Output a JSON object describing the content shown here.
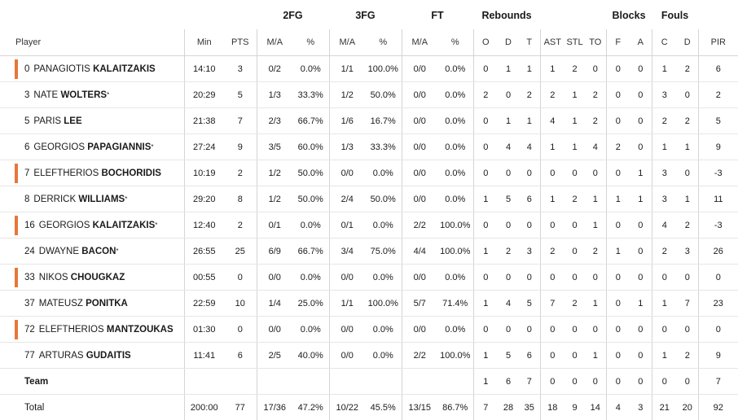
{
  "headers": {
    "groups": {
      "fg2": "2FG",
      "fg3": "3FG",
      "ft": "FT",
      "rebounds": "Rebounds",
      "blocks": "Blocks",
      "fouls": "Fouls"
    },
    "columns": {
      "player": "Player",
      "min": "Min",
      "pts": "PTS",
      "fg2_ma": "M/A",
      "fg2_pct": "%",
      "fg3_ma": "M/A",
      "fg3_pct": "%",
      "ft_ma": "M/A",
      "ft_pct": "%",
      "reb_o": "O",
      "reb_d": "D",
      "reb_t": "T",
      "ast": "AST",
      "stl": "STL",
      "to": "TO",
      "blk_f": "F",
      "blk_a": "A",
      "foul_c": "C",
      "foul_d": "D",
      "pir": "PIR"
    }
  },
  "marker_color": "#e8763a",
  "players": [
    {
      "number": "0",
      "first": "PANAGIOTIS",
      "last": "KALAITZAKIS",
      "star": "",
      "bench": true,
      "min": "14:10",
      "pts": "3",
      "fg2_ma": "0/2",
      "fg2_pct": "0.0%",
      "fg3_ma": "1/1",
      "fg3_pct": "100.0%",
      "ft_ma": "0/0",
      "ft_pct": "0.0%",
      "reb_o": "0",
      "reb_d": "1",
      "reb_t": "1",
      "ast": "1",
      "stl": "2",
      "to": "0",
      "blk_f": "0",
      "blk_a": "0",
      "foul_c": "1",
      "foul_d": "2",
      "pir": "6"
    },
    {
      "number": "3",
      "first": "NATE",
      "last": "WOLTERS",
      "star": "*",
      "bench": false,
      "min": "20:29",
      "pts": "5",
      "fg2_ma": "1/3",
      "fg2_pct": "33.3%",
      "fg3_ma": "1/2",
      "fg3_pct": "50.0%",
      "ft_ma": "0/0",
      "ft_pct": "0.0%",
      "reb_o": "2",
      "reb_d": "0",
      "reb_t": "2",
      "ast": "2",
      "stl": "1",
      "to": "2",
      "blk_f": "0",
      "blk_a": "0",
      "foul_c": "3",
      "foul_d": "0",
      "pir": "2"
    },
    {
      "number": "5",
      "first": "PARIS",
      "last": "LEE",
      "star": "",
      "bench": false,
      "min": "21:38",
      "pts": "7",
      "fg2_ma": "2/3",
      "fg2_pct": "66.7%",
      "fg3_ma": "1/6",
      "fg3_pct": "16.7%",
      "ft_ma": "0/0",
      "ft_pct": "0.0%",
      "reb_o": "0",
      "reb_d": "1",
      "reb_t": "1",
      "ast": "4",
      "stl": "1",
      "to": "2",
      "blk_f": "0",
      "blk_a": "0",
      "foul_c": "2",
      "foul_d": "2",
      "pir": "5"
    },
    {
      "number": "6",
      "first": "GEORGIOS",
      "last": "PAPAGIANNIS",
      "star": "*",
      "bench": false,
      "min": "27:24",
      "pts": "9",
      "fg2_ma": "3/5",
      "fg2_pct": "60.0%",
      "fg3_ma": "1/3",
      "fg3_pct": "33.3%",
      "ft_ma": "0/0",
      "ft_pct": "0.0%",
      "reb_o": "0",
      "reb_d": "4",
      "reb_t": "4",
      "ast": "1",
      "stl": "1",
      "to": "4",
      "blk_f": "2",
      "blk_a": "0",
      "foul_c": "1",
      "foul_d": "1",
      "pir": "9"
    },
    {
      "number": "7",
      "first": "ELEFTHERIOS",
      "last": "BOCHORIDIS",
      "star": "",
      "bench": true,
      "min": "10:19",
      "pts": "2",
      "fg2_ma": "1/2",
      "fg2_pct": "50.0%",
      "fg3_ma": "0/0",
      "fg3_pct": "0.0%",
      "ft_ma": "0/0",
      "ft_pct": "0.0%",
      "reb_o": "0",
      "reb_d": "0",
      "reb_t": "0",
      "ast": "0",
      "stl": "0",
      "to": "0",
      "blk_f": "0",
      "blk_a": "1",
      "foul_c": "3",
      "foul_d": "0",
      "pir": "-3"
    },
    {
      "number": "8",
      "first": "DERRICK",
      "last": "WILLIAMS",
      "star": "*",
      "bench": false,
      "min": "29:20",
      "pts": "8",
      "fg2_ma": "1/2",
      "fg2_pct": "50.0%",
      "fg3_ma": "2/4",
      "fg3_pct": "50.0%",
      "ft_ma": "0/0",
      "ft_pct": "0.0%",
      "reb_o": "1",
      "reb_d": "5",
      "reb_t": "6",
      "ast": "1",
      "stl": "2",
      "to": "1",
      "blk_f": "1",
      "blk_a": "1",
      "foul_c": "3",
      "foul_d": "1",
      "pir": "11"
    },
    {
      "number": "16",
      "first": "GEORGIOS",
      "last": "KALAITZAKIS",
      "star": "*",
      "bench": true,
      "min": "12:40",
      "pts": "2",
      "fg2_ma": "0/1",
      "fg2_pct": "0.0%",
      "fg3_ma": "0/1",
      "fg3_pct": "0.0%",
      "ft_ma": "2/2",
      "ft_pct": "100.0%",
      "reb_o": "0",
      "reb_d": "0",
      "reb_t": "0",
      "ast": "0",
      "stl": "0",
      "to": "1",
      "blk_f": "0",
      "blk_a": "0",
      "foul_c": "4",
      "foul_d": "2",
      "pir": "-3"
    },
    {
      "number": "24",
      "first": "DWAYNE",
      "last": "BACON",
      "star": "*",
      "bench": false,
      "min": "26:55",
      "pts": "25",
      "fg2_ma": "6/9",
      "fg2_pct": "66.7%",
      "fg3_ma": "3/4",
      "fg3_pct": "75.0%",
      "ft_ma": "4/4",
      "ft_pct": "100.0%",
      "reb_o": "1",
      "reb_d": "2",
      "reb_t": "3",
      "ast": "2",
      "stl": "0",
      "to": "2",
      "blk_f": "1",
      "blk_a": "0",
      "foul_c": "2",
      "foul_d": "3",
      "pir": "26"
    },
    {
      "number": "33",
      "first": "NIKOS",
      "last": "CHOUGKAZ",
      "star": "",
      "bench": true,
      "min": "00:55",
      "pts": "0",
      "fg2_ma": "0/0",
      "fg2_pct": "0.0%",
      "fg3_ma": "0/0",
      "fg3_pct": "0.0%",
      "ft_ma": "0/0",
      "ft_pct": "0.0%",
      "reb_o": "0",
      "reb_d": "0",
      "reb_t": "0",
      "ast": "0",
      "stl": "0",
      "to": "0",
      "blk_f": "0",
      "blk_a": "0",
      "foul_c": "0",
      "foul_d": "0",
      "pir": "0"
    },
    {
      "number": "37",
      "first": "MATEUSZ",
      "last": "PONITKA",
      "star": "",
      "bench": false,
      "min": "22:59",
      "pts": "10",
      "fg2_ma": "1/4",
      "fg2_pct": "25.0%",
      "fg3_ma": "1/1",
      "fg3_pct": "100.0%",
      "ft_ma": "5/7",
      "ft_pct": "71.4%",
      "reb_o": "1",
      "reb_d": "4",
      "reb_t": "5",
      "ast": "7",
      "stl": "2",
      "to": "1",
      "blk_f": "0",
      "blk_a": "1",
      "foul_c": "1",
      "foul_d": "7",
      "pir": "23"
    },
    {
      "number": "72",
      "first": "ELEFTHERIOS",
      "last": "MANTZOUKAS",
      "star": "",
      "bench": true,
      "min": "01:30",
      "pts": "0",
      "fg2_ma": "0/0",
      "fg2_pct": "0.0%",
      "fg3_ma": "0/0",
      "fg3_pct": "0.0%",
      "ft_ma": "0/0",
      "ft_pct": "0.0%",
      "reb_o": "0",
      "reb_d": "0",
      "reb_t": "0",
      "ast": "0",
      "stl": "0",
      "to": "0",
      "blk_f": "0",
      "blk_a": "0",
      "foul_c": "0",
      "foul_d": "0",
      "pir": "0"
    },
    {
      "number": "77",
      "first": "ARTURAS",
      "last": "GUDAITIS",
      "star": "",
      "bench": false,
      "min": "11:41",
      "pts": "6",
      "fg2_ma": "2/5",
      "fg2_pct": "40.0%",
      "fg3_ma": "0/0",
      "fg3_pct": "0.0%",
      "ft_ma": "2/2",
      "ft_pct": "100.0%",
      "reb_o": "1",
      "reb_d": "5",
      "reb_t": "6",
      "ast": "0",
      "stl": "0",
      "to": "1",
      "blk_f": "0",
      "blk_a": "0",
      "foul_c": "1",
      "foul_d": "2",
      "pir": "9"
    }
  ],
  "team_row": {
    "label": "Team",
    "min": "",
    "pts": "",
    "fg2_ma": "",
    "fg2_pct": "",
    "fg3_ma": "",
    "fg3_pct": "",
    "ft_ma": "",
    "ft_pct": "",
    "reb_o": "1",
    "reb_d": "6",
    "reb_t": "7",
    "ast": "0",
    "stl": "0",
    "to": "0",
    "blk_f": "0",
    "blk_a": "0",
    "foul_c": "0",
    "foul_d": "0",
    "pir": "7"
  },
  "total_row": {
    "label": "Total",
    "min": "200:00",
    "pts": "77",
    "fg2_ma": "17/36",
    "fg2_pct": "47.2%",
    "fg3_ma": "10/22",
    "fg3_pct": "45.5%",
    "ft_ma": "13/15",
    "ft_pct": "86.7%",
    "reb_o": "7",
    "reb_d": "28",
    "reb_t": "35",
    "ast": "18",
    "stl": "9",
    "to": "14",
    "blk_f": "4",
    "blk_a": "3",
    "foul_c": "21",
    "foul_d": "20",
    "pir": "92"
  }
}
